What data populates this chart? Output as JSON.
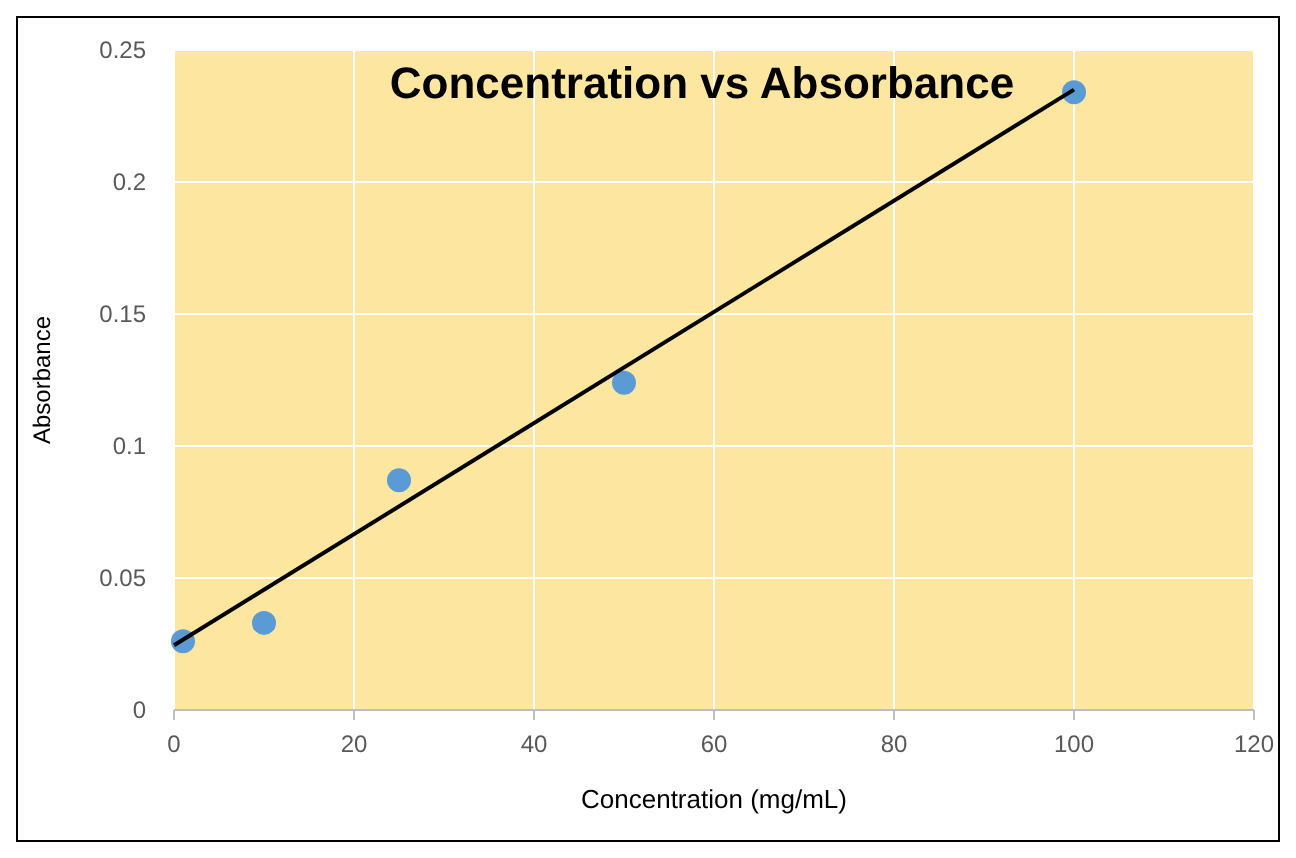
{
  "chart_data": {
    "type": "scatter",
    "title": "Concentration vs Absorbance",
    "xlabel": "Concentration (mg/mL)",
    "ylabel": "Absorbance",
    "xlim": [
      0,
      120
    ],
    "xticks": [
      0,
      20,
      40,
      60,
      80,
      100,
      120
    ],
    "ylim": [
      0,
      0.25
    ],
    "yticks": [
      0,
      0.05,
      0.1,
      0.15,
      0.2,
      0.25
    ],
    "grid": true,
    "series": [
      {
        "color": "#5b9bd5",
        "marker": "circle",
        "x": [
          1,
          10,
          25,
          50,
          100
        ],
        "values": [
          0.026,
          0.033,
          0.087,
          0.124,
          0.234
        ]
      },
      {
        "type": "line",
        "color": "#000000",
        "marker": "none",
        "x": [
          0,
          100
        ],
        "values": [
          0.0245,
          0.235
        ]
      }
    ]
  }
}
